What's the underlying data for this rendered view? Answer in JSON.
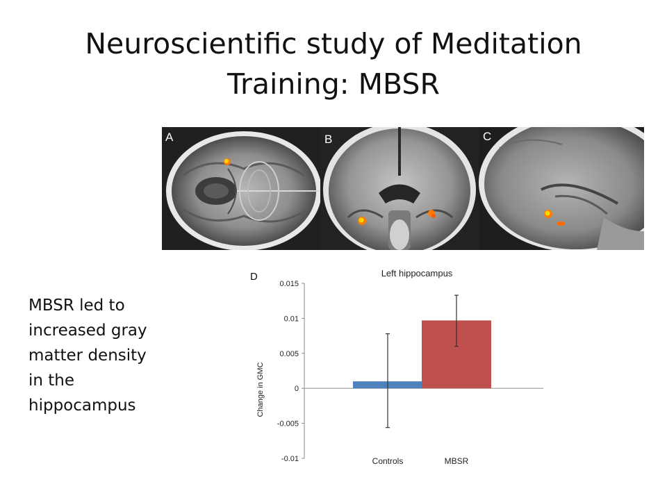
{
  "slide": {
    "title_line1": "Neuroscientific study of Meditation",
    "title_line2": "Training: MBSR",
    "body_lines": [
      "MBSR led to",
      "increased gray",
      "matter density",
      "in the",
      "hippocampus"
    ]
  },
  "brain_panels": [
    {
      "letter": "A",
      "view": "axial"
    },
    {
      "letter": "B",
      "view": "coronal"
    },
    {
      "letter": "C",
      "view": "sagittal"
    }
  ],
  "colors": {
    "controls_bar": "#4f81bd",
    "mbsr_bar": "#c0504d",
    "activation_hot": "#ffd700",
    "activation_warm": "#ff7a00"
  },
  "chart_data": {
    "type": "bar",
    "panel_letter": "D",
    "title": "Left hippocampus",
    "ylabel": "Change in GMC",
    "xlabel": "",
    "categories": [
      "Controls",
      "MBSR"
    ],
    "values": [
      0.001,
      0.0097
    ],
    "error_upper": [
      0.0078,
      0.0133
    ],
    "error_lower": [
      -0.0056,
      0.006
    ],
    "bar_colors": [
      "#4f81bd",
      "#c0504d"
    ],
    "ylim": [
      -0.01,
      0.015
    ],
    "yticks": [
      0.015,
      0.01,
      0.005,
      0,
      -0.005,
      -0.01
    ],
    "ytick_labels": [
      "0.015",
      "0.01",
      "0.005",
      "0",
      "-0.005",
      "-0.01"
    ],
    "grid": false,
    "legend": "none"
  }
}
